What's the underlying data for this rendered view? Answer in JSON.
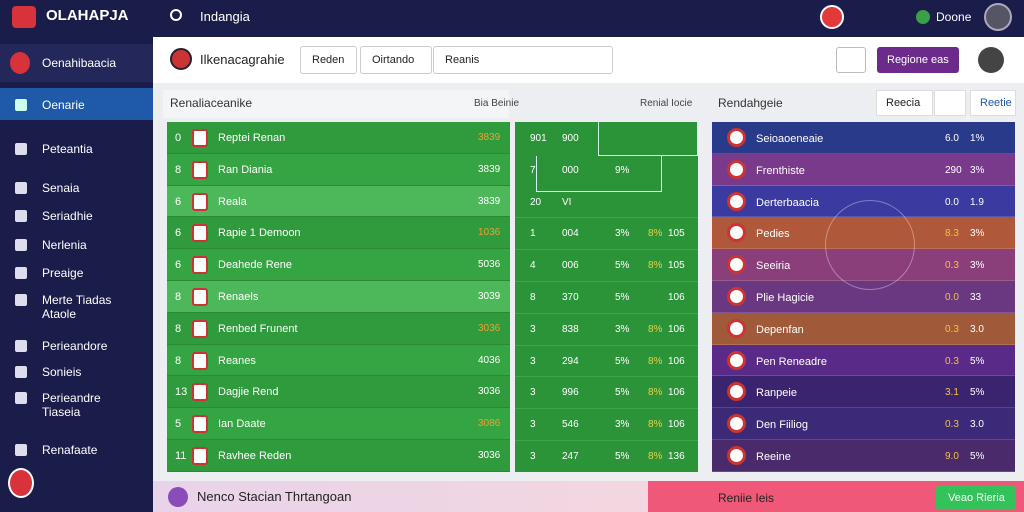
{
  "header": {
    "logo": "OLAHAPJA",
    "search": "Indangia",
    "user": "Doone"
  },
  "sidebar": {
    "title": "Oenahibaacia",
    "items": [
      "Oenarie",
      "Peteantia",
      "Senaia",
      "Seriadhie",
      "Nerlenia",
      "Preaige",
      "Merte Tiadas Ataole",
      "Perieandore",
      "Sonieis",
      "Perieandre Tiaseia",
      "Renafaate"
    ]
  },
  "toolbar": {
    "title": "Ilkenacagrahie",
    "tabs": [
      "Reden",
      "Oirtando",
      "Reanis"
    ],
    "action": "Regione eas"
  },
  "left_panel": {
    "title": "Renaliaceanike",
    "filter": "Bia Beinie",
    "rows": [
      [
        "0",
        "Reptei Renan",
        "3839"
      ],
      [
        "8",
        "Ran Diania",
        "3839"
      ],
      [
        "6",
        "Reala",
        "3839"
      ],
      [
        "6",
        "Rapie 1 Demoon",
        "1036"
      ],
      [
        "6",
        "Deahede Rene",
        "5036"
      ],
      [
        "8",
        "Renaels",
        "3039"
      ],
      [
        "8",
        "Renbed Frunent",
        "3036"
      ],
      [
        "8",
        "Reanes",
        "4036"
      ],
      [
        "13",
        "Dagjie Rend",
        "3036"
      ],
      [
        "5",
        "Ian Daate",
        "3086"
      ],
      [
        "11",
        "Ravhee Reden",
        "3036"
      ]
    ]
  },
  "middle_panel": {
    "title": "Renial Iocie",
    "rows": [
      [
        "901",
        "900",
        "",
        "",
        ""
      ],
      [
        "7",
        "000",
        "9%",
        "",
        ""
      ],
      [
        "20",
        "VI",
        "",
        "",
        ""
      ],
      [
        "1",
        "004",
        "3%",
        "8%",
        "105"
      ],
      [
        "4",
        "006",
        "5%",
        "8%",
        "105"
      ],
      [
        "8",
        "370",
        "5%",
        "",
        "106"
      ],
      [
        "3",
        "838",
        "3%",
        "8%",
        "106"
      ],
      [
        "3",
        "294",
        "5%",
        "8%",
        "106"
      ],
      [
        "3",
        "996",
        "5%",
        "8%",
        "106"
      ],
      [
        "3",
        "546",
        "3%",
        "8%",
        "106"
      ],
      [
        "3",
        "247",
        "5%",
        "8%",
        "136"
      ]
    ]
  },
  "right_panel": {
    "title": "Rendahgeie",
    "tabs": [
      "Reecia",
      "Reetie"
    ],
    "rows": [
      [
        "Seioaoeneaie",
        "6.0",
        "1%"
      ],
      [
        "Frenthiste",
        "290",
        "3%"
      ],
      [
        "Derterbaacia",
        "0.0",
        "1.9"
      ],
      [
        "Pedies",
        "8.3",
        "3%"
      ],
      [
        "Seeiria",
        "0.3",
        "3%"
      ],
      [
        "Plie Hagicie",
        "0.0",
        "33"
      ],
      [
        "Depenfan",
        "0.3",
        "3.0"
      ],
      [
        "Pen Reneadre",
        "0.3",
        "5%"
      ],
      [
        "Ranpeie",
        "3.1",
        "5%"
      ],
      [
        "Den Fiiliog",
        "0.3",
        "3.0"
      ],
      [
        "Reeine",
        "9.0",
        "5%"
      ]
    ]
  },
  "footer": {
    "message": "Nenco Stacian Thrtangoan",
    "center": "Reniie Ieis",
    "button": "Veao Rieria"
  }
}
